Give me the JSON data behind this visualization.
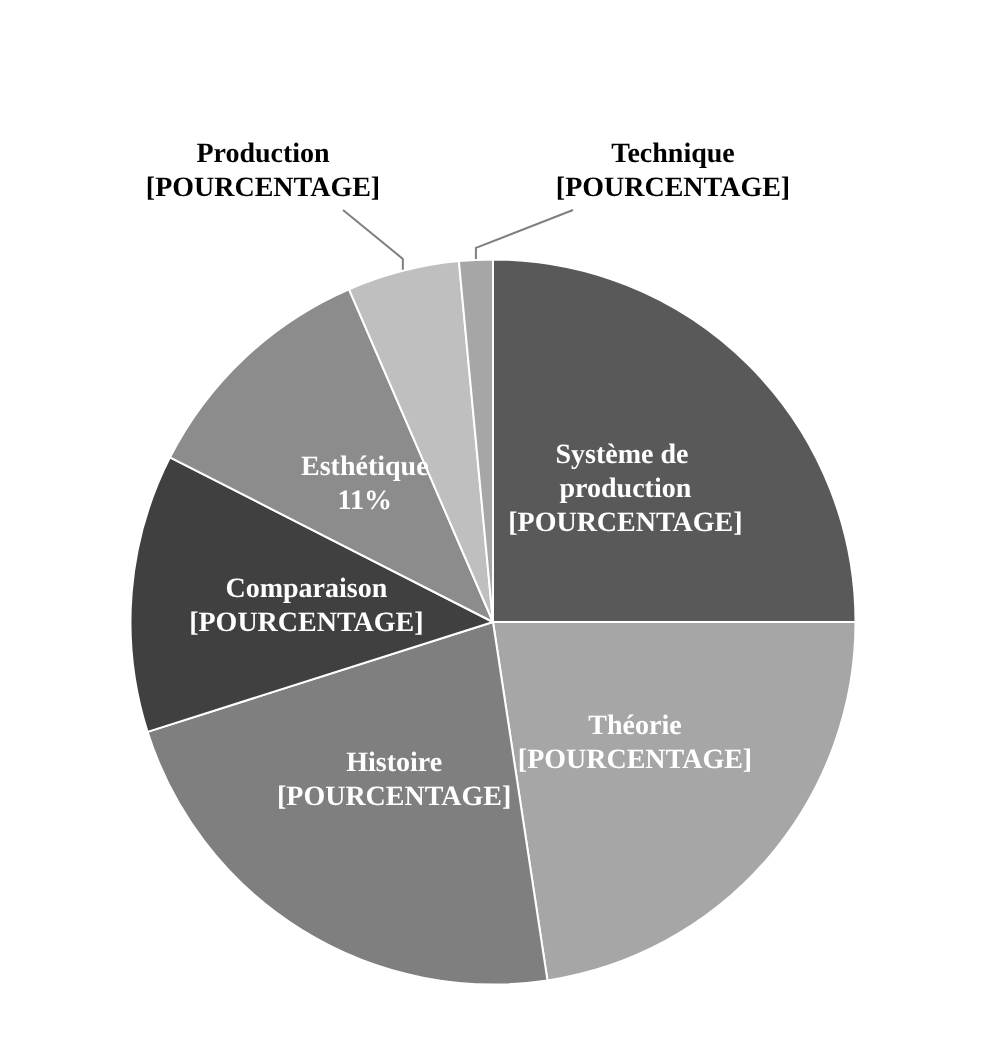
{
  "chart_data": {
    "type": "pie",
    "categories": [
      "Système de production",
      "Théorie",
      "Histoire",
      "Comparaison",
      "Esthétique",
      "Production",
      "Technique"
    ],
    "values": [
      25,
      22.6,
      22.5,
      12.4,
      11,
      5,
      1.5
    ],
    "value_labels": [
      "[POURCENTAGE]",
      "[POURCENTAGE]",
      "[POURCENTAGE]",
      "[POURCENTAGE]",
      "11%",
      "[POURCENTAGE]",
      "[POURCENTAGE]"
    ],
    "colors": [
      "#595959",
      "#a6a6a6",
      "#7f7f7f",
      "#404040",
      "#8c8c8c",
      "#bfbfbf",
      "#a6a6a6"
    ]
  }
}
